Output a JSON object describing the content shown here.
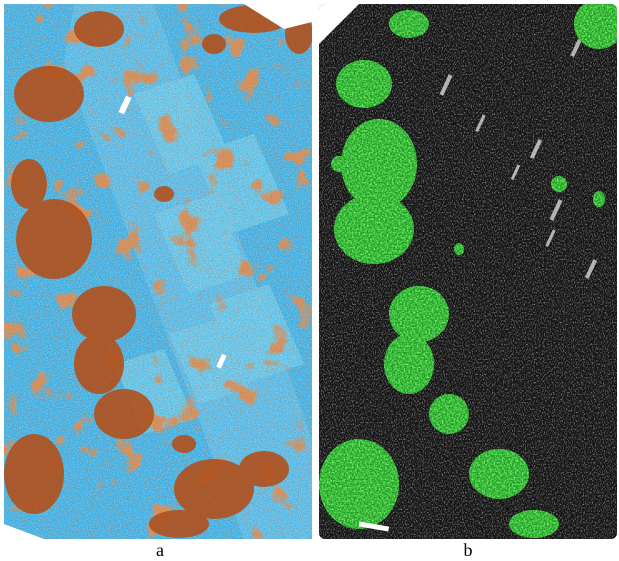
{
  "figure": {
    "panels": [
      {
        "id": "a",
        "caption": "a",
        "description_colors": {
          "ground": "#3ab0e8",
          "ground_light": "#8fd6f2",
          "ground_dark": "#1f7fc4",
          "vegetation": "#b5561f",
          "vegetation_dark": "#7a2e12",
          "highlight": "#e8d24a"
        },
        "icon": "lidar-point-cloud-intensity-map"
      },
      {
        "id": "b",
        "caption": "b",
        "description_colors": {
          "ground": "#1a1a1a",
          "ground_light": "#8c8c8c",
          "vegetation": "#2fd42f",
          "vegetation_dark": "#138a13"
        },
        "icon": "lidar-point-cloud-classified-map"
      }
    ]
  }
}
